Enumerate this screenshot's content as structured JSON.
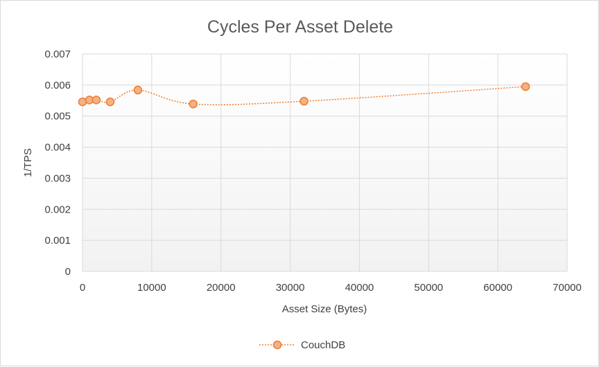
{
  "chart_data": {
    "type": "scatter",
    "title": "Cycles Per Asset Delete",
    "xlabel": "Asset Size (Bytes)",
    "ylabel": "1/TPS",
    "xlim": [
      0,
      70000
    ],
    "ylim": [
      0,
      0.007
    ],
    "x_ticks": [
      "0",
      "10000",
      "20000",
      "30000",
      "40000",
      "50000",
      "60000",
      "70000"
    ],
    "y_ticks": [
      "0",
      "0.001",
      "0.002",
      "0.003",
      "0.004",
      "0.005",
      "0.006",
      "0.007"
    ],
    "grid": true,
    "legend_position": "bottom",
    "line_style": "dotted smoothed",
    "marker": "circle",
    "color": "#ed7d31",
    "marker_fill": "#f4b183",
    "series": [
      {
        "name": "CouchDB",
        "x": [
          0,
          1000,
          2000,
          4000,
          8000,
          16000,
          32000,
          64000
        ],
        "y": [
          0.00546,
          0.00552,
          0.00552,
          0.00546,
          0.00584,
          0.00539,
          0.00548,
          0.00595
        ]
      }
    ]
  }
}
